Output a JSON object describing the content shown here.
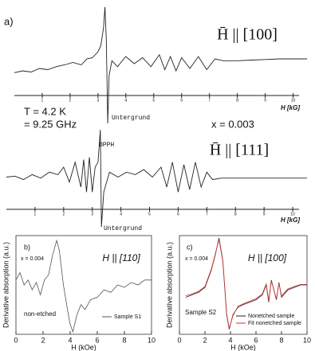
{
  "chart_data": [
    {
      "type": "line",
      "panel_label": "a)",
      "title": "H̄ || [100]",
      "x_label": "H [kG]",
      "x": [
        0,
        0.3,
        0.6,
        0.9,
        1.2,
        1.5,
        1.8,
        2.1,
        2.4,
        2.6,
        2.8,
        3.0,
        3.1,
        3.2,
        3.25,
        3.3,
        3.35,
        3.4,
        3.5,
        3.7,
        4.0,
        4.3,
        4.6,
        4.9,
        5.2,
        5.4,
        5.6,
        5.8,
        6.0,
        6.3,
        6.6,
        6.9,
        7.2,
        7.5,
        8.0,
        8.5,
        9.0,
        9.5,
        10.0,
        10.5
      ],
      "values": [
        -0.15,
        -0.12,
        -0.14,
        -0.08,
        -0.1,
        -0.05,
        -0.02,
        0.02,
        -0.02,
        0.08,
        0.1,
        0.2,
        0.3,
        0.6,
        0.95,
        0.4,
        -1.0,
        -0.2,
        0.05,
        -0.05,
        0.12,
        0.0,
        0.1,
        -0.05,
        0.15,
        -0.1,
        0.12,
        -0.12,
        0.1,
        -0.08,
        0.12,
        -0.1,
        0.08,
        0.05,
        0.05,
        0.06,
        0.07,
        0.08,
        0.08,
        0.08
      ],
      "color": "#222",
      "xlim": [
        0,
        10.5
      ],
      "ylim": [
        -1,
        1
      ],
      "xticks": [
        1,
        2,
        3,
        4,
        5,
        6,
        7,
        8,
        9,
        10
      ],
      "annotations": [
        "Untergrund",
        "T = 4.2 K",
        "= 9.25 GHz",
        "x = 0.003"
      ]
    },
    {
      "type": "line",
      "title": "H̄ || [111]",
      "x_label": "H [kG]",
      "x": [
        0,
        0.3,
        0.6,
        0.9,
        1.2,
        1.5,
        1.8,
        2.0,
        2.2,
        2.4,
        2.6,
        2.7,
        2.8,
        2.9,
        3.0,
        3.1,
        3.2,
        3.28,
        3.32,
        3.4,
        3.6,
        3.9,
        4.2,
        4.5,
        4.8,
        5.1,
        5.4,
        5.6,
        5.8,
        6.0,
        6.2,
        6.4,
        6.6,
        6.8,
        7.0,
        7.2,
        7.5,
        8,
        9,
        10.5
      ],
      "values": [
        0.0,
        0.02,
        -0.05,
        0.05,
        -0.02,
        0.1,
        0.05,
        0.2,
        -0.1,
        0.3,
        -0.2,
        0.35,
        -0.3,
        0.4,
        -0.3,
        0.2,
        0.3,
        0.95,
        -1.0,
        -0.3,
        0.1,
        0.0,
        0.1,
        0.05,
        0.15,
        0.0,
        0.2,
        -0.2,
        0.3,
        -0.3,
        0.25,
        -0.25,
        0.3,
        -0.2,
        0.1,
        -0.05,
        -0.02,
        -0.02,
        -0.02,
        -0.02
      ],
      "color": "#222",
      "xlim": [
        0,
        10.5
      ],
      "ylim": [
        -1,
        1
      ],
      "xticks": [
        1,
        2,
        3,
        4,
        5,
        6,
        7,
        8,
        9,
        10
      ],
      "annotations": [
        "DPPH",
        "Untergrund"
      ]
    },
    {
      "type": "line",
      "panel_label": "b)",
      "title": "H || [110]",
      "x_label": "H (kOe)",
      "y_label": "Derivative absorption (a.u.)",
      "x": [
        0,
        0.3,
        0.6,
        0.9,
        1.2,
        1.5,
        1.8,
        2.1,
        2.4,
        2.7,
        3.0,
        3.2,
        3.5,
        3.8,
        4.0,
        4.2,
        4.5,
        4.8,
        5.1,
        5.5,
        6.0,
        6.5,
        7.0,
        7.5,
        8.0,
        8.5,
        9.0,
        9.5,
        10
      ],
      "series": [
        {
          "name": "Sample S1",
          "color": "#555",
          "values": [
            0.1,
            0.25,
            0.0,
            0.1,
            -0.1,
            0.05,
            -0.2,
            0.1,
            0.2,
            0.6,
            0.9,
            0.7,
            0.0,
            -0.5,
            -0.8,
            -0.95,
            -0.6,
            -0.4,
            -0.5,
            -0.3,
            -0.25,
            -0.1,
            -0.15,
            0.0,
            -0.05,
            0.05,
            0.0,
            0.1,
            0.1
          ]
        }
      ],
      "xlim": [
        0,
        10
      ],
      "ylim": [
        -1,
        1
      ],
      "xticks": [
        0,
        2,
        4,
        6,
        8,
        10
      ],
      "annotations": [
        "x = 0.004",
        "non-etched"
      ]
    },
    {
      "type": "line",
      "panel_label": "c)",
      "title": "H || [100]",
      "x_label": "H (kOe)",
      "y_label": "Derivative absorption (a.u.)",
      "x": [
        0.5,
        1,
        1.5,
        2,
        2.5,
        2.8,
        3.1,
        3.4,
        3.7,
        3.9,
        4.2,
        4.6,
        5,
        5.5,
        6,
        6.5,
        6.8,
        7,
        7.2,
        7.6,
        7.8,
        8,
        8.5,
        9,
        9.5,
        10
      ],
      "series": [
        {
          "name": "Nonetched sample",
          "color": "#222",
          "values": [
            -0.25,
            -0.2,
            -0.15,
            -0.05,
            0.3,
            0.6,
            0.95,
            0.5,
            -0.6,
            -0.9,
            -0.6,
            -0.45,
            -0.4,
            -0.35,
            -0.3,
            -0.2,
            0.0,
            -0.35,
            0.1,
            -0.3,
            0.05,
            -0.25,
            -0.1,
            -0.05,
            0.0,
            0.0
          ]
        },
        {
          "name": "Fit nonetched sample",
          "color": "#d03030",
          "values": [
            -0.22,
            -0.18,
            -0.13,
            -0.03,
            0.32,
            0.62,
            0.92,
            0.48,
            -0.58,
            -0.88,
            -0.62,
            -0.43,
            -0.38,
            -0.33,
            -0.28,
            -0.18,
            0.02,
            -0.32,
            0.08,
            -0.28,
            0.03,
            -0.22,
            -0.08,
            -0.03,
            0.01,
            0.01
          ]
        }
      ],
      "xlim": [
        0,
        10
      ],
      "ylim": [
        -1,
        1
      ],
      "xticks": [
        0,
        2,
        4,
        6,
        8,
        10
      ],
      "annotations": [
        "x = 0.004",
        "Sample S2"
      ]
    }
  ]
}
